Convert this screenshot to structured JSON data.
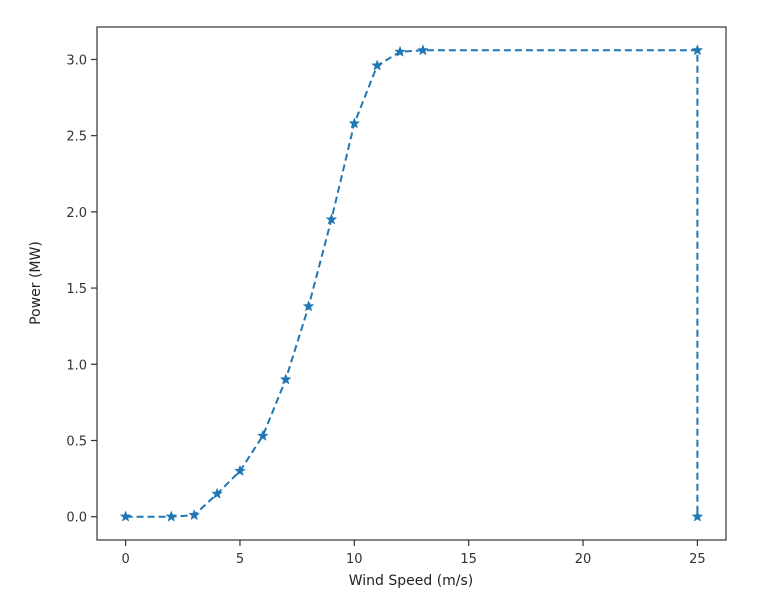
{
  "chart_data": {
    "type": "line",
    "xlabel": "Wind Speed (m/s)",
    "ylabel": "Power (MW)",
    "xlim": [
      -1.25,
      26.25
    ],
    "ylim": [
      -0.153,
      3.213
    ],
    "x_ticks": [
      0,
      5,
      10,
      15,
      20,
      25
    ],
    "x_tick_labels": [
      "0",
      "5",
      "10",
      "15",
      "20",
      "25"
    ],
    "y_ticks": [
      0.0,
      0.5,
      1.0,
      1.5,
      2.0,
      2.5,
      3.0
    ],
    "y_tick_labels": [
      "0.0",
      "0.5",
      "1.0",
      "1.5",
      "2.0",
      "2.5",
      "3.0"
    ],
    "grid": false,
    "legend": "none",
    "series": [
      {
        "color": "#1f77b4",
        "line_style": "dashed",
        "marker": "star",
        "x": [
          0,
          2,
          3,
          4,
          5,
          6,
          7,
          8,
          9,
          10,
          11,
          12,
          13,
          25,
          25
        ],
        "y": [
          0.0,
          0.0,
          0.01,
          0.15,
          0.3,
          0.53,
          0.9,
          1.38,
          1.95,
          2.58,
          2.96,
          3.05,
          3.06,
          3.06,
          0.0
        ]
      }
    ]
  }
}
